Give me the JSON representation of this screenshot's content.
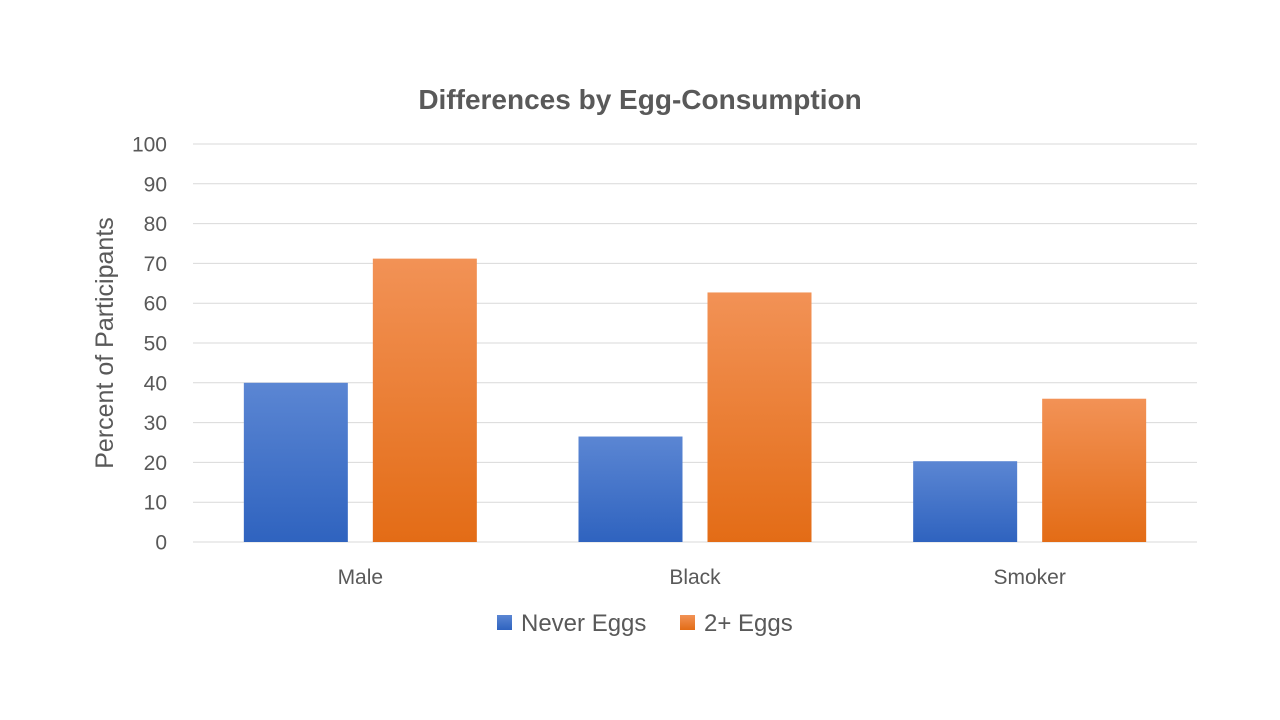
{
  "chart_data": {
    "type": "bar",
    "title": "Differences by Egg-Consumption",
    "xlabel": "",
    "ylabel": "Percent of Participants",
    "ylim": [
      0,
      100
    ],
    "yticks": [
      "0",
      "10",
      "20",
      "30",
      "40",
      "50",
      "60",
      "70",
      "80",
      "90",
      "100"
    ],
    "categories": [
      "Male",
      "Black",
      "Smoker"
    ],
    "series": [
      {
        "name": "Never Eggs",
        "values": [
          40,
          26.5,
          20.3
        ],
        "color_top": "#5b86d3",
        "color_bottom": "#2f63bf"
      },
      {
        "name": "2+ Eggs",
        "values": [
          71.2,
          62.7,
          36
        ],
        "color_top": "#f29256",
        "color_bottom": "#e36c16"
      }
    ],
    "grid": true,
    "legend": "bottom"
  }
}
